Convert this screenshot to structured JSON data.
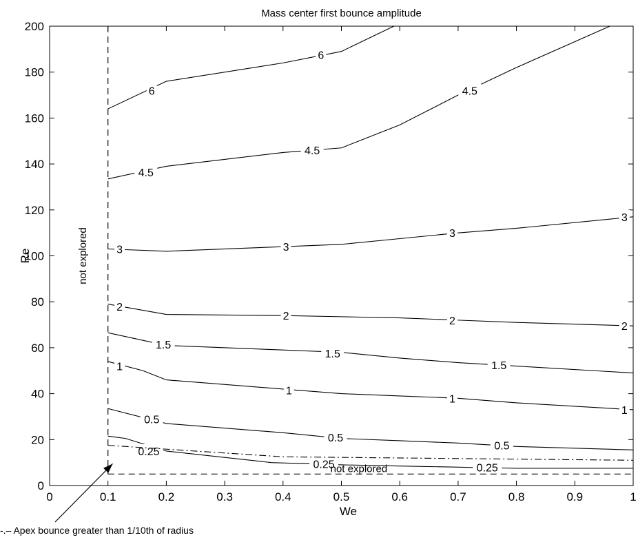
{
  "chart_data": {
    "type": "line",
    "title": "Mass center first bounce amplitude",
    "xlabel": "We",
    "ylabel": "Re",
    "xlim": [
      0,
      1
    ],
    "ylim": [
      0,
      200
    ],
    "xticks": [
      "0",
      "0.1",
      "0.2",
      "0.3",
      "0.4",
      "0.5",
      "0.6",
      "0.7",
      "0.8",
      "0.9",
      "1"
    ],
    "yticks": [
      "0",
      "20",
      "40",
      "60",
      "80",
      "100",
      "120",
      "140",
      "160",
      "180",
      "200"
    ],
    "grid": false,
    "contours": [
      {
        "level": "0.25",
        "points": [
          [
            0.1,
            21.5
          ],
          [
            0.13,
            20.5
          ],
          [
            0.2,
            15
          ],
          [
            0.38,
            10
          ],
          [
            0.5,
            9
          ],
          [
            0.6,
            8.5
          ],
          [
            0.7,
            8
          ],
          [
            0.8,
            7.5
          ],
          [
            1.0,
            7.5
          ]
        ],
        "labels": [
          {
            "text": "0.25",
            "x": 0.17,
            "y": 15
          },
          {
            "text": "0.25",
            "x": 0.47,
            "y": 9.5
          },
          {
            "text": "0.25",
            "x": 0.75,
            "y": 8
          }
        ]
      },
      {
        "level": "0.5",
        "points": [
          [
            0.1,
            33.5
          ],
          [
            0.2,
            27
          ],
          [
            0.4,
            23
          ],
          [
            0.5,
            20.5
          ],
          [
            0.6,
            19.5
          ],
          [
            0.7,
            18.5
          ],
          [
            0.8,
            17
          ],
          [
            1.0,
            15.5
          ]
        ],
        "labels": [
          {
            "text": "0.5",
            "x": 0.175,
            "y": 29
          },
          {
            "text": "0.5",
            "x": 0.49,
            "y": 21
          },
          {
            "text": "0.5",
            "x": 0.775,
            "y": 17.5
          }
        ]
      },
      {
        "level": "1",
        "points": [
          [
            0.1,
            54
          ],
          [
            0.16,
            50
          ],
          [
            0.2,
            46
          ],
          [
            0.4,
            42
          ],
          [
            0.5,
            40
          ],
          [
            0.6,
            39
          ],
          [
            0.7,
            38
          ],
          [
            0.8,
            36
          ],
          [
            1.0,
            33
          ]
        ],
        "labels": [
          {
            "text": "1",
            "x": 0.12,
            "y": 52
          },
          {
            "text": "1",
            "x": 0.41,
            "y": 41.5
          },
          {
            "text": "1",
            "x": 0.69,
            "y": 38
          },
          {
            "text": "1",
            "x": 0.985,
            "y": 33
          }
        ]
      },
      {
        "level": "1.5",
        "points": [
          [
            0.1,
            66.5
          ],
          [
            0.2,
            61
          ],
          [
            0.4,
            59
          ],
          [
            0.5,
            58
          ],
          [
            0.6,
            55.5
          ],
          [
            0.7,
            53.5
          ],
          [
            0.8,
            52
          ],
          [
            1.0,
            49
          ]
        ],
        "labels": [
          {
            "text": "1.5",
            "x": 0.195,
            "y": 61.5
          },
          {
            "text": "1.5",
            "x": 0.485,
            "y": 57.5
          },
          {
            "text": "1.5",
            "x": 0.77,
            "y": 52.5
          }
        ]
      },
      {
        "level": "2",
        "points": [
          [
            0.1,
            79
          ],
          [
            0.2,
            74.5
          ],
          [
            0.4,
            74
          ],
          [
            0.5,
            73.5
          ],
          [
            0.6,
            73
          ],
          [
            0.7,
            72
          ],
          [
            0.8,
            71
          ],
          [
            1.0,
            69.5
          ]
        ],
        "labels": [
          {
            "text": "2",
            "x": 0.12,
            "y": 78
          },
          {
            "text": "2",
            "x": 0.405,
            "y": 74
          },
          {
            "text": "2",
            "x": 0.69,
            "y": 72
          },
          {
            "text": "2",
            "x": 0.985,
            "y": 69.5
          }
        ]
      },
      {
        "level": "3",
        "points": [
          [
            0.1,
            103
          ],
          [
            0.2,
            102
          ],
          [
            0.4,
            104
          ],
          [
            0.5,
            105
          ],
          [
            0.6,
            107.5
          ],
          [
            0.7,
            110
          ],
          [
            0.8,
            112
          ],
          [
            1.0,
            117
          ]
        ],
        "labels": [
          {
            "text": "3",
            "x": 0.12,
            "y": 103
          },
          {
            "text": "3",
            "x": 0.405,
            "y": 104
          },
          {
            "text": "3",
            "x": 0.69,
            "y": 110
          },
          {
            "text": "3",
            "x": 0.985,
            "y": 117
          }
        ]
      },
      {
        "level": "4.5",
        "points": [
          [
            0.1,
            133.5
          ],
          [
            0.2,
            139
          ],
          [
            0.4,
            145
          ],
          [
            0.5,
            147
          ],
          [
            0.6,
            157
          ],
          [
            0.7,
            170
          ],
          [
            0.8,
            182
          ],
          [
            0.96,
            200
          ]
        ],
        "labels": [
          {
            "text": "4.5",
            "x": 0.165,
            "y": 136.5
          },
          {
            "text": "4.5",
            "x": 0.45,
            "y": 146
          },
          {
            "text": "4.5",
            "x": 0.72,
            "y": 172
          }
        ]
      },
      {
        "level": "6",
        "points": [
          [
            0.1,
            164
          ],
          [
            0.2,
            176
          ],
          [
            0.4,
            184
          ],
          [
            0.5,
            189
          ],
          [
            0.59,
            200
          ]
        ],
        "labels": [
          {
            "text": "6",
            "x": 0.175,
            "y": 172
          },
          {
            "text": "6",
            "x": 0.465,
            "y": 187.5
          }
        ]
      }
    ],
    "not_explored_regions": {
      "vertical_x": 0.1,
      "horizontal_y": 5,
      "label_left": "not explored",
      "label_bottom": "not explored"
    },
    "apex_line": {
      "style": "dash-dot",
      "points": [
        [
          0.1,
          17.5
        ],
        [
          0.4,
          12.5
        ],
        [
          1.0,
          11
        ]
      ],
      "annotation": "-.– Apex bounce greater than 1/10th of radius"
    }
  }
}
